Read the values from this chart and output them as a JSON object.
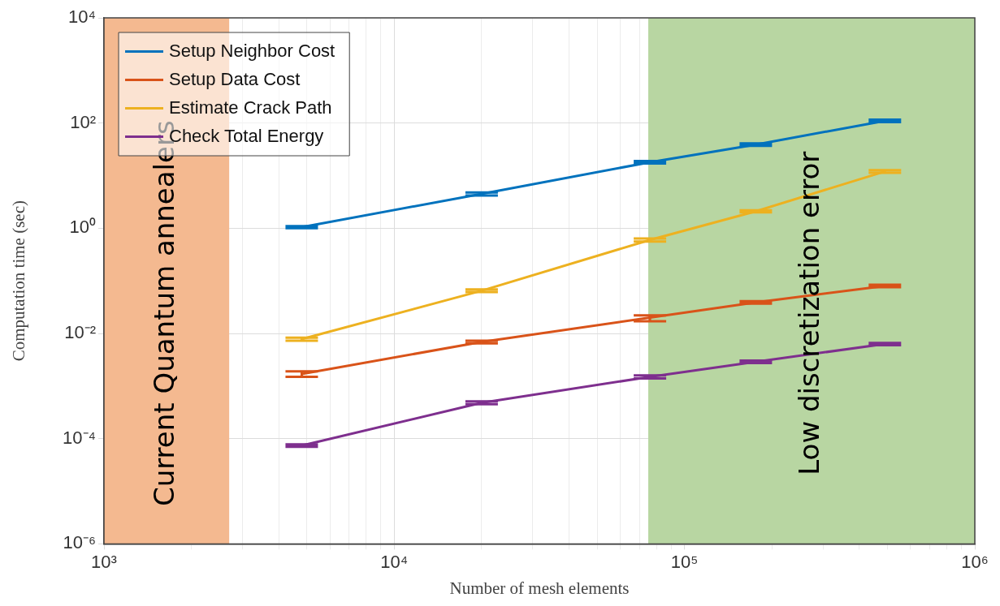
{
  "chart_data": {
    "type": "line",
    "xlabel": "Number of mesh elements",
    "ylabel": "Computation time (sec)",
    "log": "xy",
    "grid": true,
    "legend": "top left",
    "marker": "none",
    "line_style": "solid",
    "x": [
      4800,
      20000,
      76000,
      176000,
      490000
    ],
    "xlim": [
      1000,
      1000000
    ],
    "xticks": [
      {
        "value": 1000,
        "label": "10³"
      },
      {
        "value": 2000,
        "label": null
      },
      {
        "value": 3000,
        "label": null
      },
      {
        "value": 4000,
        "label": null
      },
      {
        "value": 5000,
        "label": null
      },
      {
        "value": 6000,
        "label": null
      },
      {
        "value": 7000,
        "label": null
      },
      {
        "value": 8000,
        "label": null
      },
      {
        "value": 9000,
        "label": null
      },
      {
        "value": 10000,
        "label": "10⁴"
      },
      {
        "value": 20000,
        "label": null
      },
      {
        "value": 30000,
        "label": null
      },
      {
        "value": 40000,
        "label": null
      },
      {
        "value": 50000,
        "label": null
      },
      {
        "value": 60000,
        "label": null
      },
      {
        "value": 70000,
        "label": null
      },
      {
        "value": 80000,
        "label": null
      },
      {
        "value": 90000,
        "label": null
      },
      {
        "value": 100000,
        "label": "10⁵"
      },
      {
        "value": 200000,
        "label": null
      },
      {
        "value": 300000,
        "label": null
      },
      {
        "value": 400000,
        "label": null
      },
      {
        "value": 500000,
        "label": null
      },
      {
        "value": 600000,
        "label": null
      },
      {
        "value": 700000,
        "label": null
      },
      {
        "value": 800000,
        "label": null
      },
      {
        "value": 900000,
        "label": null
      },
      {
        "value": 1000000,
        "label": "10⁶"
      }
    ],
    "ylim": [
      1e-06,
      10000
    ],
    "yticks": [
      {
        "value": 1e-06,
        "label": "10⁻⁶"
      },
      {
        "value": 0.0001,
        "label": "10⁻⁴"
      },
      {
        "value": 0.01,
        "label": "10⁻²"
      },
      {
        "value": 1,
        "label": "10⁰"
      },
      {
        "value": 100,
        "label": "10²"
      },
      {
        "value": 10000,
        "label": "10⁴"
      }
    ],
    "series": [
      {
        "name": "Setup Neighbor Cost",
        "color": "#0072bd",
        "values": [
          1.05,
          4.5,
          18,
          39,
          110
        ],
        "errors": [
          [
            1.0,
            1.1
          ],
          [
            4.2,
            4.8
          ],
          [
            17,
            19
          ],
          [
            37,
            41
          ],
          [
            104,
            116
          ]
        ]
      },
      {
        "name": "Setup Data Cost",
        "color": "#d95319",
        "values": [
          0.0017,
          0.0069,
          0.02,
          0.039,
          0.08
        ],
        "errors": [
          [
            0.0015,
            0.0019
          ],
          [
            0.0065,
            0.0073
          ],
          [
            0.017,
            0.022
          ],
          [
            0.037,
            0.041
          ],
          [
            0.076,
            0.084
          ]
        ]
      },
      {
        "name": "Estimate Crack Path",
        "color": "#edb120",
        "values": [
          0.0078,
          0.065,
          0.6,
          2.1,
          12
        ],
        "errors": [
          [
            0.0073,
            0.0083
          ],
          [
            0.061,
            0.069
          ],
          [
            0.56,
            0.64
          ],
          [
            2.0,
            2.2
          ],
          [
            11.3,
            12.7
          ]
        ]
      },
      {
        "name": "Check Total Energy",
        "color": "#7e2f8e",
        "values": [
          7.4e-05,
          0.00048,
          0.0015,
          0.0029,
          0.0063
        ],
        "errors": [
          [
            7e-05,
            7.8e-05
          ],
          [
            0.00045,
            0.00051
          ],
          [
            0.0014,
            0.0016
          ],
          [
            0.00275,
            0.00305
          ],
          [
            0.006,
            0.0066
          ]
        ]
      }
    ],
    "bands": [
      {
        "axis": "x",
        "from": 1000,
        "to": 2700,
        "label": "Current Quantum annealers",
        "color": "#f4b990"
      },
      {
        "axis": "x",
        "from": 75000,
        "to": 1000000,
        "label": "Low discretization error",
        "color": "#b8d6a2"
      }
    ]
  }
}
